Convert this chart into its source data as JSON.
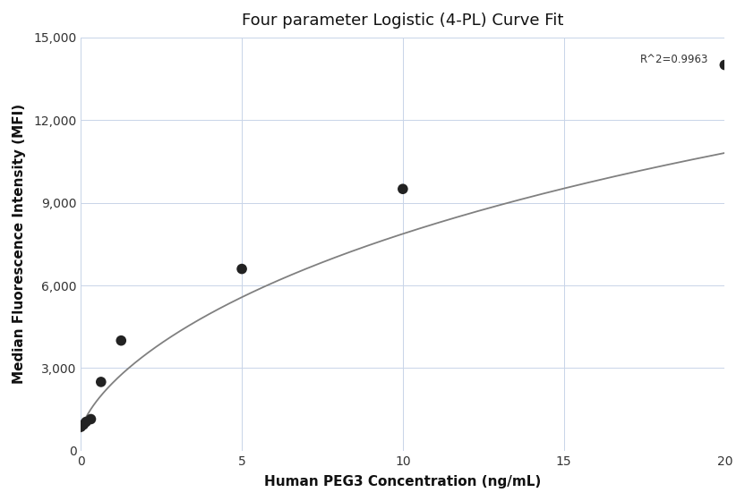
{
  "title": "Four parameter Logistic (4-PL) Curve Fit",
  "xlabel": "Human PEG3 Concentration (ng/mL)",
  "ylabel": "Median Fluorescence Intensity (MFI)",
  "scatter_x": [
    0.0,
    0.08,
    0.16,
    0.31,
    0.625,
    1.25,
    5.0,
    10.0,
    20.0
  ],
  "scatter_y": [
    870,
    950,
    1050,
    1150,
    2500,
    4000,
    6600,
    9500,
    14000
  ],
  "r_squared": "R^2=0.9963",
  "xlim": [
    0,
    20
  ],
  "ylim": [
    0,
    15000
  ],
  "xticks": [
    0,
    5,
    10,
    15,
    20
  ],
  "yticks": [
    0,
    3000,
    6000,
    9000,
    12000,
    15000
  ],
  "curve_color": "#808080",
  "scatter_color": "#222222",
  "bg_color": "#ffffff",
  "grid_color": "#c8d4e8",
  "scatter_size": 70,
  "title_fontsize": 13,
  "label_fontsize": 11,
  "tick_fontsize": 10,
  "annot_fontsize": 8.5
}
